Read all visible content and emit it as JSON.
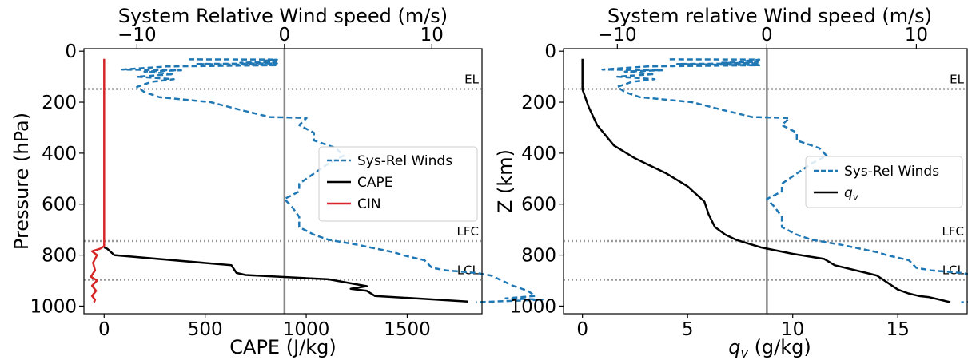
{
  "chart_data": [
    {
      "type": "line",
      "top_axis_label": "System Relative Wind speed (m/s)",
      "xlabel": "CAPE (J/kg)",
      "ylabel": "Pressure (hPa)",
      "xlim": [
        -100,
        1870
      ],
      "ylim_inverted": [
        1030,
        -10
      ],
      "top_xlim": [
        -13.6,
        13.4
      ],
      "x_ticks": [
        0,
        500,
        1000,
        1500
      ],
      "x_tick_labels": [
        "0",
        "500",
        "1000",
        "1500"
      ],
      "y_ticks": [
        0,
        200,
        400,
        600,
        800,
        1000
      ],
      "y_tick_labels": [
        "0",
        "200",
        "400",
        "600",
        "800",
        "1000"
      ],
      "top_ticks": [
        -10,
        0,
        10
      ],
      "top_tick_labels": [
        "−10",
        "0",
        "10"
      ],
      "legend": [
        "Sys-Rel Winds",
        "CAPE",
        "CIN"
      ],
      "legend_position": "right",
      "grid": false,
      "zero_line_wind": 0,
      "levels": [
        {
          "label": "EL",
          "y": 148
        },
        {
          "label": "LFC",
          "y": 745
        },
        {
          "label": "LCL",
          "y": 897
        }
      ],
      "series": [
        {
          "name": "Sys-Rel Winds",
          "axis": "top",
          "style": "dashed",
          "color": "#1f77b4",
          "points": [
            [
              -6.5,
              32
            ],
            [
              -0.5,
              33
            ],
            [
              -1.5,
              38
            ],
            [
              -0.6,
              42
            ],
            [
              -3.0,
              45
            ],
            [
              -0.5,
              48
            ],
            [
              -6.0,
              50
            ],
            [
              -0.5,
              55
            ],
            [
              -8.0,
              60
            ],
            [
              -11.0,
              72
            ],
            [
              -7.0,
              75
            ],
            [
              -9.5,
              80
            ],
            [
              -7.5,
              90
            ],
            [
              -10.0,
              100
            ],
            [
              -7.5,
              110
            ],
            [
              -9.0,
              120
            ],
            [
              -10.0,
              140
            ],
            [
              -9.5,
              160
            ],
            [
              -8.5,
              180
            ],
            [
              -5.0,
              200
            ],
            [
              -3.0,
              230
            ],
            [
              -1.0,
              258
            ],
            [
              1.5,
              262
            ],
            [
              1.0,
              290
            ],
            [
              2.0,
              320
            ],
            [
              2.0,
              350
            ],
            [
              3.5,
              380
            ],
            [
              4.0,
              410
            ],
            [
              3.0,
              440
            ],
            [
              2.0,
              480
            ],
            [
              1.0,
              520
            ],
            [
              1.0,
              550
            ],
            [
              0.0,
              580
            ],
            [
              0.5,
              610
            ],
            [
              1.0,
              650
            ],
            [
              1.0,
              690
            ],
            [
              2.0,
              720
            ],
            [
              3.0,
              740
            ],
            [
              5.0,
              760
            ],
            [
              7.5,
              790
            ],
            [
              8.0,
              800
            ],
            [
              9.5,
              820
            ],
            [
              10.0,
              850
            ],
            [
              11.0,
              860
            ],
            [
              13.0,
              870
            ],
            [
              14.0,
              880
            ],
            [
              15.5,
              920
            ],
            [
              16.5,
              940
            ],
            [
              17.0,
              960
            ],
            [
              15.0,
              970
            ],
            [
              17.5,
              975
            ],
            [
              13.0,
              985
            ]
          ]
        },
        {
          "name": "CAPE",
          "axis": "bottom",
          "style": "solid",
          "color": "#000000",
          "points": [
            [
              0,
              770
            ],
            [
              15,
              775
            ],
            [
              50,
              800
            ],
            [
              630,
              840
            ],
            [
              655,
              870
            ],
            [
              700,
              878
            ],
            [
              1110,
              895
            ],
            [
              1300,
              922
            ],
            [
              1220,
              932
            ],
            [
              1300,
              940
            ],
            [
              1340,
              960
            ],
            [
              1800,
              982
            ]
          ]
        },
        {
          "name": "CIN",
          "axis": "bottom",
          "style": "solid",
          "color": "#d62728",
          "points": [
            [
              0,
              30
            ],
            [
              0,
              765
            ],
            [
              -20,
              775
            ],
            [
              -60,
              785
            ],
            [
              -35,
              800
            ],
            [
              -55,
              830
            ],
            [
              -45,
              860
            ],
            [
              -65,
              885
            ],
            [
              -35,
              900
            ],
            [
              -60,
              920
            ],
            [
              -40,
              940
            ],
            [
              -60,
              960
            ],
            [
              -45,
              975
            ],
            [
              -50,
              985
            ]
          ]
        }
      ]
    },
    {
      "type": "line",
      "top_axis_label": "System relative Wind speed (m/s)",
      "xlabel": "q_v (g/kg)",
      "ylabel": "Z (km)",
      "xlim": [
        -0.9,
        18.3
      ],
      "ylim_inverted": [
        1030,
        -10
      ],
      "top_xlim": [
        -13.6,
        13.4
      ],
      "x_ticks": [
        0,
        5,
        10,
        15
      ],
      "x_tick_labels": [
        "0",
        "5",
        "10",
        "15"
      ],
      "y_ticks": [
        0,
        200,
        400,
        600,
        800,
        1000
      ],
      "y_tick_labels": [
        "0",
        "200",
        "400",
        "600",
        "800",
        "1000"
      ],
      "top_ticks": [
        -10,
        0,
        10
      ],
      "top_tick_labels": [
        "−10",
        "0",
        "10"
      ],
      "legend": [
        "Sys-Rel Winds",
        "q_v"
      ],
      "legend_position": "right",
      "grid": false,
      "zero_line_wind": 0,
      "levels": [
        {
          "label": "EL",
          "y": 148
        },
        {
          "label": "LFC",
          "y": 745
        },
        {
          "label": "LCL",
          "y": 897
        }
      ],
      "series": [
        {
          "name": "Sys-Rel Winds",
          "axis": "top",
          "style": "dashed",
          "color": "#1f77b4",
          "points": [
            [
              -6.5,
              32
            ],
            [
              -0.5,
              33
            ],
            [
              -1.5,
              38
            ],
            [
              -0.6,
              42
            ],
            [
              -3.0,
              45
            ],
            [
              -0.5,
              48
            ],
            [
              -6.0,
              50
            ],
            [
              -0.5,
              55
            ],
            [
              -8.0,
              60
            ],
            [
              -11.0,
              72
            ],
            [
              -7.0,
              75
            ],
            [
              -9.5,
              80
            ],
            [
              -7.5,
              90
            ],
            [
              -10.0,
              100
            ],
            [
              -7.5,
              110
            ],
            [
              -9.0,
              120
            ],
            [
              -10.0,
              140
            ],
            [
              -9.5,
              160
            ],
            [
              -8.5,
              180
            ],
            [
              -5.0,
              200
            ],
            [
              -3.0,
              230
            ],
            [
              -1.0,
              258
            ],
            [
              1.5,
              262
            ],
            [
              1.0,
              290
            ],
            [
              2.0,
              320
            ],
            [
              2.0,
              350
            ],
            [
              3.5,
              380
            ],
            [
              4.0,
              410
            ],
            [
              3.0,
              440
            ],
            [
              2.0,
              480
            ],
            [
              1.0,
              520
            ],
            [
              1.0,
              550
            ],
            [
              0.0,
              580
            ],
            [
              0.5,
              610
            ],
            [
              1.0,
              650
            ],
            [
              1.0,
              690
            ],
            [
              2.0,
              720
            ],
            [
              3.0,
              740
            ],
            [
              5.0,
              760
            ],
            [
              7.5,
              790
            ],
            [
              8.0,
              800
            ],
            [
              9.5,
              820
            ],
            [
              10.0,
              850
            ],
            [
              11.0,
              860
            ],
            [
              13.0,
              870
            ],
            [
              14.0,
              880
            ],
            [
              15.5,
              920
            ],
            [
              16.5,
              940
            ],
            [
              17.0,
              960
            ],
            [
              15.0,
              970
            ],
            [
              17.5,
              975
            ],
            [
              13.0,
              985
            ]
          ]
        },
        {
          "name": "q_v",
          "axis": "bottom",
          "style": "solid",
          "color": "#000000",
          "points": [
            [
              0,
              30
            ],
            [
              0,
              150
            ],
            [
              0.3,
              220
            ],
            [
              0.7,
              290
            ],
            [
              1.5,
              370
            ],
            [
              2.5,
              420
            ],
            [
              3.0,
              440
            ],
            [
              4.0,
              480
            ],
            [
              5.0,
              530
            ],
            [
              5.8,
              590
            ],
            [
              6.0,
              640
            ],
            [
              6.3,
              690
            ],
            [
              6.8,
              720
            ],
            [
              7.3,
              740
            ],
            [
              8.5,
              770
            ],
            [
              10.0,
              795
            ],
            [
              11.5,
              815
            ],
            [
              12.0,
              840
            ],
            [
              13.5,
              870
            ],
            [
              14.0,
              880
            ],
            [
              15.0,
              935
            ],
            [
              15.5,
              950
            ],
            [
              16.0,
              960
            ],
            [
              16.5,
              965
            ],
            [
              17.0,
              975
            ],
            [
              17.5,
              985
            ]
          ]
        }
      ]
    }
  ]
}
